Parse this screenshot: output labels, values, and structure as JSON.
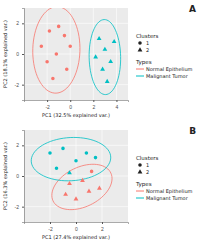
{
  "chart_data": [
    {
      "type": "scatter",
      "title": "A",
      "x_label": "PC1 (32.5% explained var.)",
      "y_label": "PC2 (18.1% explained var.)",
      "xlim": [
        -4,
        5
      ],
      "ylim": [
        -3,
        3
      ],
      "xticks": [
        -2,
        0,
        2,
        4
      ],
      "yticks": [
        -2,
        0,
        2
      ],
      "grid": true,
      "legend": "right",
      "shape_legend": {
        "title": "Clusters",
        "labels": [
          "1",
          "2"
        ],
        "markers": [
          "circle",
          "triangle"
        ]
      },
      "color_legend_title": "Types",
      "series": [
        {
          "name": "Normal Epithelium",
          "color": "#F8766D",
          "x": [
            -2.5,
            -1.8,
            -1.0,
            -0.5,
            -2.0,
            -1.2,
            0.0,
            -0.3,
            -1.5
          ],
          "values": [
            0.5,
            1.5,
            1.8,
            1.2,
            -0.5,
            0.0,
            0.5,
            -1.0,
            -1.6
          ],
          "cluster": [
            1,
            1,
            1,
            1,
            1,
            1,
            1,
            1,
            1
          ]
        },
        {
          "name": "Malignant Tumor",
          "color": "#00BFC4",
          "x": [
            2.5,
            3.0,
            3.5,
            2.8,
            3.2,
            2.2,
            3.8
          ],
          "values": [
            1.0,
            0.3,
            -0.5,
            -1.0,
            -1.8,
            -0.2,
            0.8
          ],
          "cluster": [
            2,
            2,
            2,
            2,
            2,
            2,
            2
          ]
        }
      ]
    },
    {
      "type": "scatter",
      "title": "B",
      "x_label": "PC1 (27.4% explained var.)",
      "y_label": "PC2 (16.3% explained var.)",
      "xlim": [
        -4,
        4
      ],
      "ylim": [
        -3,
        3
      ],
      "xticks": [
        -2,
        0,
        2
      ],
      "yticks": [
        -2,
        0,
        2
      ],
      "grid": true,
      "legend": "right",
      "shape_legend": {
        "title": "Clusters",
        "labels": [
          "1",
          "2"
        ],
        "markers": [
          "circle",
          "triangle"
        ]
      },
      "color_legend_title": "Types",
      "series": [
        {
          "name": "Normal Epithelium",
          "color": "#F8766D",
          "x": [
            -0.5,
            0.5,
            1.0,
            0.0,
            1.8,
            -0.8,
            1.2
          ],
          "values": [
            -0.5,
            -0.3,
            -1.0,
            -1.5,
            -0.8,
            -1.2,
            0.3
          ],
          "cluster": [
            2,
            2,
            2,
            2,
            2,
            2,
            1
          ]
        },
        {
          "name": "Malignant Tumor",
          "color": "#00BFC4",
          "x": [
            -2.0,
            -1.0,
            0.0,
            -1.5,
            -0.5,
            0.8,
            1.5
          ],
          "values": [
            1.5,
            1.8,
            1.0,
            0.5,
            0.2,
            1.5,
            1.2
          ],
          "cluster": [
            1,
            1,
            1,
            1,
            2,
            1,
            1
          ]
        }
      ]
    }
  ]
}
